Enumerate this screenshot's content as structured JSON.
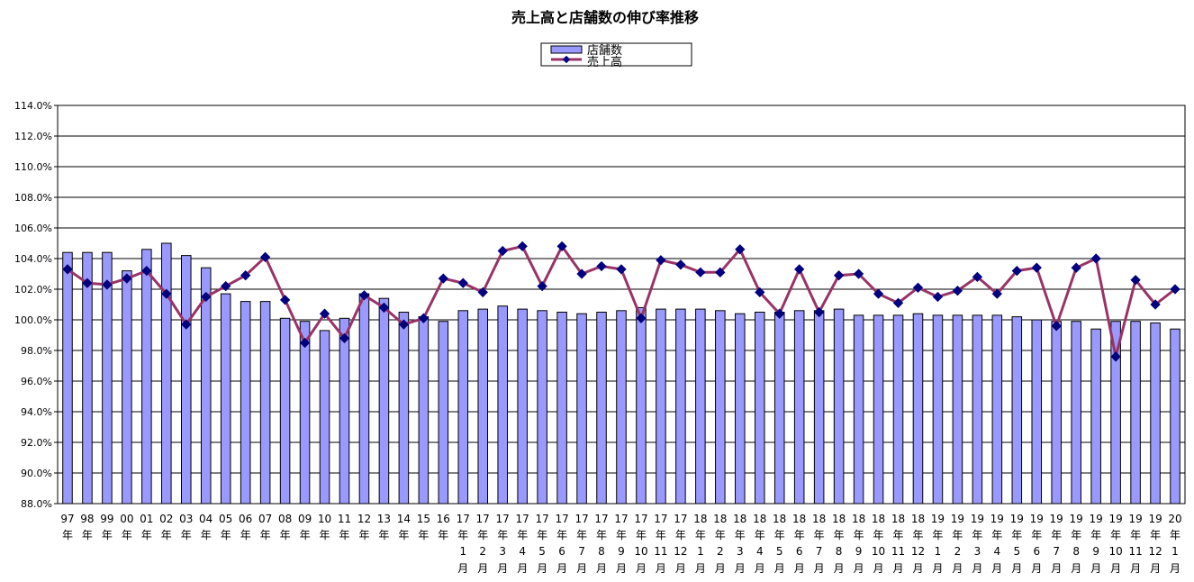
{
  "chart_data": {
    "type": "bar",
    "title": "売上高と店舗数の伸び率推移",
    "legend": {
      "placement": "top-center",
      "entries": [
        "店舗数",
        "売上高"
      ]
    },
    "y_axis": {
      "min": 88.0,
      "max": 114.0,
      "step": 2.0,
      "format": "percent_1dp"
    },
    "grid": true,
    "categories": [
      [
        "97",
        "年"
      ],
      [
        "98",
        "年"
      ],
      [
        "99",
        "年"
      ],
      [
        "00",
        "年"
      ],
      [
        "01",
        "年"
      ],
      [
        "02",
        "年"
      ],
      [
        "03",
        "年"
      ],
      [
        "04",
        "年"
      ],
      [
        "05",
        "年"
      ],
      [
        "06",
        "年"
      ],
      [
        "07",
        "年"
      ],
      [
        "08",
        "年"
      ],
      [
        "09",
        "年"
      ],
      [
        "10",
        "年"
      ],
      [
        "11",
        "年"
      ],
      [
        "12",
        "年"
      ],
      [
        "13",
        "年"
      ],
      [
        "14",
        "年"
      ],
      [
        "15",
        "年"
      ],
      [
        "16",
        "年"
      ],
      [
        "17",
        "年",
        "1",
        "月"
      ],
      [
        "17",
        "年",
        "2",
        "月"
      ],
      [
        "17",
        "年",
        "3",
        "月"
      ],
      [
        "17",
        "年",
        "4",
        "月"
      ],
      [
        "17",
        "年",
        "5",
        "月"
      ],
      [
        "17",
        "年",
        "6",
        "月"
      ],
      [
        "17",
        "年",
        "7",
        "月"
      ],
      [
        "17",
        "年",
        "8",
        "月"
      ],
      [
        "17",
        "年",
        "9",
        "月"
      ],
      [
        "17",
        "年",
        "10",
        "月"
      ],
      [
        "17",
        "年",
        "11",
        "月"
      ],
      [
        "17",
        "年",
        "12",
        "月"
      ],
      [
        "18",
        "年",
        "1",
        "月"
      ],
      [
        "18",
        "年",
        "2",
        "月"
      ],
      [
        "18",
        "年",
        "3",
        "月"
      ],
      [
        "18",
        "年",
        "4",
        "月"
      ],
      [
        "18",
        "年",
        "5",
        "月"
      ],
      [
        "18",
        "年",
        "6",
        "月"
      ],
      [
        "18",
        "年",
        "7",
        "月"
      ],
      [
        "18",
        "年",
        "8",
        "月"
      ],
      [
        "18",
        "年",
        "9",
        "月"
      ],
      [
        "18",
        "年",
        "10",
        "月"
      ],
      [
        "18",
        "年",
        "11",
        "月"
      ],
      [
        "18",
        "年",
        "12",
        "月"
      ],
      [
        "19",
        "年",
        "1",
        "月"
      ],
      [
        "19",
        "年",
        "2",
        "月"
      ],
      [
        "19",
        "年",
        "3",
        "月"
      ],
      [
        "19",
        "年",
        "4",
        "月"
      ],
      [
        "19",
        "年",
        "5",
        "月"
      ],
      [
        "19",
        "年",
        "6",
        "月"
      ],
      [
        "19",
        "年",
        "7",
        "月"
      ],
      [
        "19",
        "年",
        "8",
        "月"
      ],
      [
        "19",
        "年",
        "9",
        "月"
      ],
      [
        "19",
        "年",
        "10",
        "月"
      ],
      [
        "19",
        "年",
        "11",
        "月"
      ],
      [
        "19",
        "年",
        "12",
        "月"
      ],
      [
        "20",
        "年",
        "1",
        "月"
      ]
    ],
    "series": [
      {
        "name": "店舗数",
        "type": "bar",
        "color": "#9999ff",
        "values": [
          104.4,
          104.4,
          104.4,
          103.2,
          104.6,
          105.0,
          104.2,
          103.4,
          101.7,
          101.2,
          101.2,
          100.1,
          99.9,
          99.3,
          100.1,
          101.7,
          101.4,
          100.5,
          100.2,
          99.9,
          100.6,
          100.7,
          100.9,
          100.7,
          100.6,
          100.5,
          100.4,
          100.5,
          100.6,
          100.8,
          100.7,
          100.7,
          100.7,
          100.6,
          100.4,
          100.5,
          100.5,
          100.6,
          100.6,
          100.7,
          100.3,
          100.3,
          100.3,
          100.4,
          100.3,
          100.3,
          100.3,
          100.3,
          100.2,
          100.0,
          99.9,
          99.9,
          99.4,
          99.9,
          99.9,
          99.8,
          99.4
        ]
      },
      {
        "name": "売上高",
        "type": "line",
        "color": "#993366",
        "marker_color": "#000080",
        "values": [
          103.3,
          102.4,
          102.3,
          102.7,
          103.2,
          101.7,
          99.7,
          101.5,
          102.2,
          102.9,
          104.1,
          101.3,
          98.5,
          100.4,
          98.8,
          101.6,
          100.8,
          99.7,
          100.1,
          102.7,
          102.4,
          101.8,
          104.5,
          104.8,
          102.2,
          104.8,
          103.0,
          103.5,
          103.3,
          100.1,
          103.9,
          103.6,
          103.1,
          103.1,
          104.6,
          101.8,
          100.4,
          103.3,
          100.5,
          102.9,
          103.0,
          101.7,
          101.1,
          102.1,
          101.5,
          101.9,
          102.8,
          101.7,
          103.2,
          103.4,
          99.6,
          103.4,
          104.0,
          97.6,
          102.6,
          101.0,
          102.0
        ]
      }
    ]
  }
}
